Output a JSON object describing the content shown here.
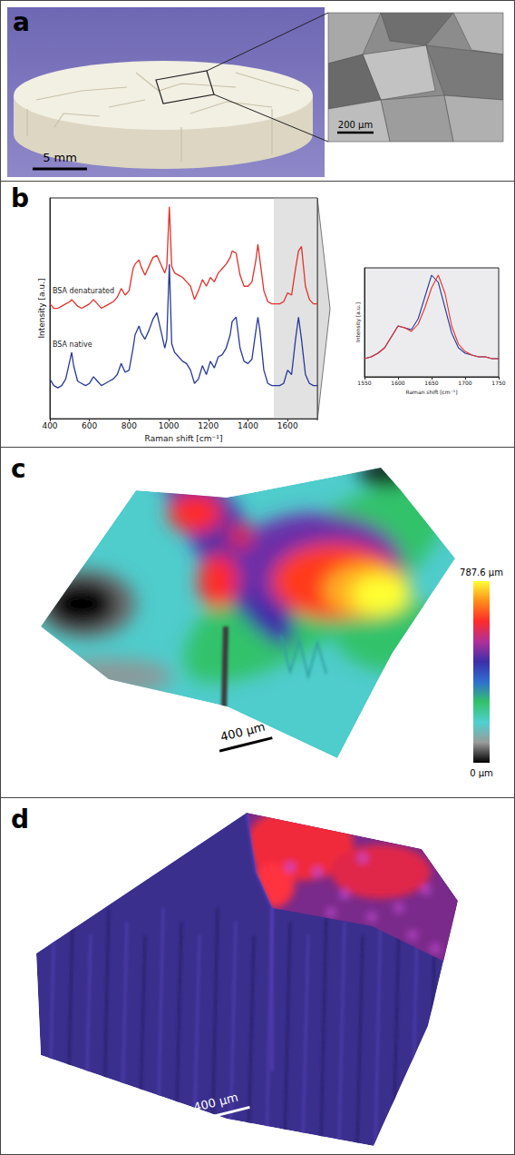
{
  "panels": {
    "a": {
      "letter": "a",
      "scale_bars": [
        "5 mm",
        "200 µm"
      ]
    },
    "b": {
      "letter": "b"
    },
    "c": {
      "letter": "c",
      "scale_bar": "400 µm",
      "colorbar": {
        "range": [
          0,
          787.6
        ],
        "ticks": [
          {
            "value": 0,
            "label": "0 µm"
          },
          {
            "value": 787.6,
            "label": "787.6 µm"
          }
        ]
      }
    },
    "d": {
      "letter": "d",
      "scale_bar": "400 µm"
    }
  },
  "chart_data": [
    {
      "type": "line",
      "xlabel": "Raman shift [cm⁻¹]",
      "ylabel": "Intensity [a.u.]",
      "x": [
        400,
        420,
        440,
        460,
        480,
        500,
        510,
        520,
        540,
        560,
        580,
        600,
        620,
        640,
        660,
        680,
        700,
        720,
        740,
        760,
        780,
        800,
        820,
        830,
        850,
        860,
        880,
        900,
        920,
        940,
        960,
        980,
        990,
        1003,
        1015,
        1030,
        1050,
        1070,
        1090,
        1110,
        1130,
        1150,
        1170,
        1190,
        1210,
        1230,
        1250,
        1270,
        1290,
        1310,
        1320,
        1340,
        1360,
        1380,
        1400,
        1420,
        1440,
        1450,
        1460,
        1480,
        1500,
        1520,
        1540,
        1560,
        1580,
        1600,
        1620,
        1640,
        1655,
        1670,
        1690,
        1710,
        1730,
        1750
      ],
      "series": [
        {
          "name": "BSA denaturated",
          "color": "#e5302a",
          "values": [
            5.2,
            5.0,
            5.0,
            5.1,
            5.2,
            5.3,
            5.4,
            5.3,
            5.1,
            5.0,
            5.1,
            5.2,
            5.4,
            5.2,
            5.0,
            5.1,
            5.2,
            5.3,
            5.5,
            5.9,
            5.6,
            5.8,
            6.8,
            7.0,
            7.2,
            6.9,
            6.5,
            6.9,
            7.3,
            7.4,
            7.0,
            6.6,
            6.9,
            9.6,
            6.9,
            6.6,
            6.5,
            6.4,
            6.2,
            6.0,
            5.4,
            5.8,
            6.3,
            6.0,
            6.4,
            6.2,
            6.6,
            6.8,
            7.0,
            7.3,
            7.6,
            7.5,
            6.5,
            6.0,
            6.0,
            6.2,
            7.2,
            7.9,
            7.2,
            5.8,
            5.3,
            5.2,
            5.2,
            5.2,
            5.3,
            5.7,
            5.6,
            6.8,
            7.6,
            7.8,
            6.0,
            5.4,
            5.2,
            5.2
          ]
        },
        {
          "name": "BSA native",
          "color": "#27389a",
          "values": [
            1.8,
            1.5,
            1.4,
            1.5,
            1.8,
            2.6,
            3.0,
            2.4,
            1.7,
            1.6,
            1.5,
            1.6,
            1.9,
            1.7,
            1.5,
            1.6,
            1.7,
            1.8,
            2.0,
            2.5,
            2.1,
            2.2,
            3.2,
            3.8,
            4.2,
            3.9,
            3.6,
            4.0,
            4.5,
            4.8,
            4.0,
            3.2,
            3.6,
            7.0,
            3.4,
            3.0,
            2.8,
            2.6,
            2.5,
            2.2,
            1.6,
            1.8,
            2.4,
            2.0,
            2.6,
            2.3,
            2.8,
            2.9,
            3.2,
            3.8,
            4.4,
            4.6,
            3.2,
            2.6,
            2.5,
            2.7,
            4.0,
            4.6,
            4.0,
            2.2,
            1.6,
            1.5,
            1.5,
            1.5,
            1.6,
            2.2,
            2.0,
            3.6,
            4.6,
            3.6,
            2.0,
            1.6,
            1.5,
            1.5
          ]
        }
      ],
      "xlim": [
        400,
        1750
      ],
      "xticks": [
        400,
        600,
        800,
        1000,
        1200,
        1400,
        1600
      ],
      "ylim": [
        0,
        10
      ],
      "tick_labels": "x",
      "grid": false,
      "shaded_range": [
        1530,
        1750
      ]
    },
    {
      "type": "line",
      "xlabel": "Raman shift [cm⁻¹]",
      "ylabel": "Intensity [a.u.]",
      "x": [
        1550,
        1560,
        1570,
        1580,
        1590,
        1600,
        1610,
        1620,
        1630,
        1640,
        1650,
        1660,
        1670,
        1680,
        1690,
        1700,
        1710,
        1720,
        1730,
        1740,
        1750
      ],
      "series": [
        {
          "color": "#27389a",
          "values": [
            1.0,
            1.1,
            1.3,
            1.6,
            2.2,
            2.8,
            2.7,
            2.6,
            3.2,
            4.4,
            5.6,
            5.2,
            3.8,
            2.4,
            1.6,
            1.3,
            1.2,
            1.1,
            1.1,
            1.0,
            1.0
          ]
        },
        {
          "color": "#e5302a",
          "values": [
            1.0,
            1.1,
            1.3,
            1.6,
            2.2,
            2.8,
            2.7,
            2.5,
            2.9,
            3.8,
            4.9,
            5.6,
            4.6,
            2.8,
            1.8,
            1.4,
            1.2,
            1.1,
            1.1,
            1.0,
            1.0
          ]
        }
      ],
      "xlim": [
        1550,
        1750
      ],
      "xticks": [
        1550,
        1600,
        1650,
        1700,
        1750
      ],
      "ylim": [
        0,
        6
      ],
      "tick_labels": "x",
      "grid": false
    }
  ]
}
